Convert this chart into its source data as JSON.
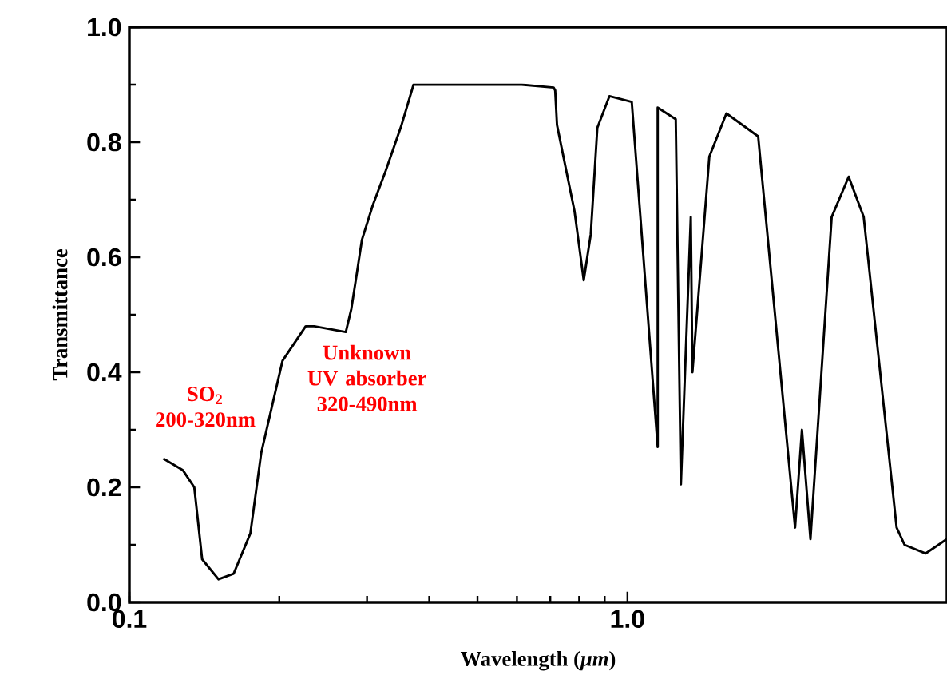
{
  "chart_data": {
    "type": "line",
    "xlabel": "Wavelength (*μm*)",
    "ylabel": "Transmittance",
    "log": "x",
    "xlim": [
      0.1,
      4.38
    ],
    "ylim": [
      0,
      1
    ],
    "xticks": [
      0.1,
      {
        "value": 1,
        "label": "1.0"
      }
    ],
    "yticks": [
      {
        "value": 0,
        "label": "0.0"
      },
      0.2,
      0.4,
      0.6,
      0.8,
      {
        "value": 1,
        "label": "1.0"
      }
    ],
    "grid": false,
    "marker": "none",
    "line_style": "solid",
    "annotations": [
      "SO$_{2}$ 200-320nm",
      "Unknown UV absorber 320-490nm"
    ],
    "series": [
      {
        "color": "#000000",
        "x": [
          0.117,
          0.128,
          0.135,
          0.14,
          0.151,
          0.162,
          0.175,
          0.184,
          0.203,
          0.226,
          0.235,
          0.272,
          0.279,
          0.286,
          0.293,
          0.308,
          0.327,
          0.352,
          0.372,
          0.477,
          0.613,
          0.711,
          0.716,
          0.722,
          0.783,
          0.817,
          0.844,
          0.87,
          0.92,
          1.02,
          1.15,
          1.15,
          1.25,
          1.28,
          1.34,
          1.35,
          1.46,
          1.58,
          1.83,
          2.17,
          2.24,
          2.33,
          2.57,
          2.78,
          2.98,
          3.47,
          3.6,
          3.97,
          4.38
        ],
        "values": [
          0.25,
          0.23,
          0.2,
          0.075,
          0.04,
          0.05,
          0.12,
          0.26,
          0.42,
          0.48,
          0.48,
          0.47,
          0.51,
          0.57,
          0.63,
          0.69,
          0.75,
          0.83,
          0.9,
          0.9,
          0.9,
          0.895,
          0.89,
          0.83,
          0.68,
          0.56,
          0.64,
          0.825,
          0.88,
          0.87,
          0.27,
          0.86,
          0.84,
          0.205,
          0.67,
          0.4,
          0.775,
          0.85,
          0.81,
          0.13,
          0.3,
          0.11,
          0.67,
          0.74,
          0.67,
          0.13,
          0.1,
          0.085,
          0.11
        ]
      }
    ]
  }
}
